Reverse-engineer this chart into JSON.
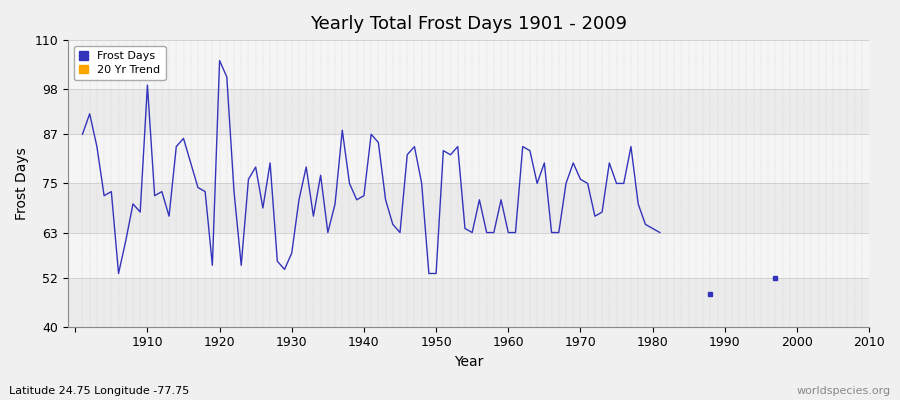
{
  "title": "Yearly Total Frost Days 1901 - 2009",
  "xlabel": "Year",
  "ylabel": "Frost Days",
  "subtitle": "Latitude 24.75 Longitude -77.75",
  "watermark": "worldspecies.org",
  "legend_frost": "Frost Days",
  "legend_trend": "20 Yr Trend",
  "frost_color": "#3333bb",
  "trend_color": "#FFA500",
  "bg_color": "#f0f0f0",
  "plot_bg": "#f5f5f5",
  "band_color1": "#ebebeb",
  "band_color2": "#f5f5f5",
  "ylim": [
    40,
    110
  ],
  "yticks": [
    40,
    52,
    63,
    75,
    87,
    98,
    110
  ],
  "xlim": [
    1899,
    2010
  ],
  "years": [
    1901,
    1902,
    1903,
    1904,
    1905,
    1906,
    1907,
    1908,
    1909,
    1910,
    1911,
    1912,
    1913,
    1914,
    1915,
    1916,
    1917,
    1918,
    1919,
    1920,
    1921,
    1922,
    1923,
    1924,
    1925,
    1926,
    1927,
    1928,
    1929,
    1930,
    1931,
    1932,
    1933,
    1934,
    1935,
    1936,
    1937,
    1938,
    1939,
    1940,
    1941,
    1942,
    1943,
    1944,
    1945,
    1946,
    1947,
    1948,
    1949,
    1950,
    1951,
    1952,
    1953,
    1954,
    1955,
    1956,
    1957,
    1958,
    1959,
    1960,
    1961,
    1962,
    1963,
    1964,
    1965,
    1966,
    1967,
    1968,
    1969,
    1970,
    1971,
    1972,
    1973,
    1974,
    1975,
    1976,
    1977,
    1978,
    1979,
    1980,
    1981,
    1988,
    1997
  ],
  "values": [
    87,
    92,
    84,
    72,
    73,
    53,
    61,
    70,
    68,
    99,
    72,
    73,
    67,
    84,
    86,
    80,
    74,
    73,
    55,
    105,
    101,
    73,
    55,
    76,
    79,
    69,
    80,
    56,
    54,
    58,
    71,
    79,
    67,
    77,
    63,
    70,
    88,
    75,
    71,
    72,
    87,
    85,
    71,
    65,
    63,
    82,
    84,
    75,
    53,
    53,
    83,
    82,
    84,
    64,
    63,
    71,
    63,
    63,
    71,
    63,
    63,
    84,
    83,
    75,
    80,
    63,
    63,
    75,
    80,
    76,
    75,
    67,
    68,
    80,
    75,
    75,
    84,
    70,
    65,
    64,
    63,
    48,
    52
  ]
}
